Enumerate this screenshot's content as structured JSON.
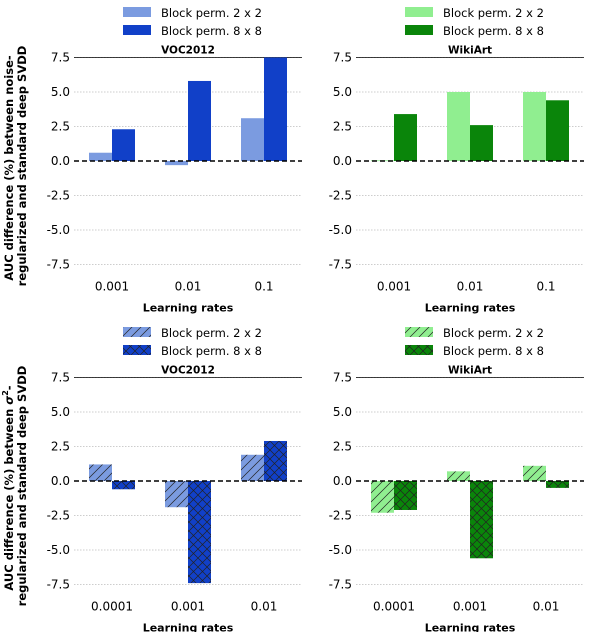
{
  "ylabel_rows": [
    {
      "line1": "AUC difference (%) between noise-",
      "line2": "regularized and standard deep SVDD"
    },
    {
      "line1_prefix": "AUC difference (%) between ",
      "line1_sigma": "σ",
      "line1_sup": "2",
      "line1_suffix": "-",
      "line2": "regularized and standard deep SVDD"
    }
  ],
  "chart_data": [
    {
      "type": "bar",
      "title": "VOC2012",
      "xlabel": "Learning rates",
      "categories": [
        "0.001",
        "0.01",
        "0.1"
      ],
      "ylim": [
        -8,
        7.5
      ],
      "yticks": [
        "7.5",
        "5.0",
        "2.5",
        "0.0",
        "-2.5",
        "-5.0",
        "-7.5"
      ],
      "hatched": false,
      "legend": "top",
      "series": [
        {
          "name": "Block perm. 2 x 2",
          "color": "#7b9be0",
          "values": [
            0.6,
            -0.3,
            3.1
          ]
        },
        {
          "name": "Block perm. 8 x 8",
          "color": "#1140c8",
          "values": [
            2.3,
            5.8,
            7.5
          ]
        }
      ]
    },
    {
      "type": "bar",
      "title": "WikiArt",
      "xlabel": "Learning rates",
      "categories": [
        "0.001",
        "0.01",
        "0.1"
      ],
      "ylim": [
        -8,
        7.5
      ],
      "yticks": [
        "7.5",
        "5.0",
        "2.5",
        "0.0",
        "-2.5",
        "-5.0",
        "-7.5"
      ],
      "hatched": false,
      "legend": "top",
      "series": [
        {
          "name": "Block perm. 2 x 2",
          "color": "#90ee90",
          "values": [
            0.05,
            5.0,
            5.0
          ]
        },
        {
          "name": "Block perm. 8 x 8",
          "color": "#0a850a",
          "values": [
            3.4,
            2.6,
            4.4
          ]
        }
      ]
    },
    {
      "type": "bar",
      "title": "VOC2012",
      "xlabel": "Learning rates",
      "categories": [
        "0.0001",
        "0.001",
        "0.01"
      ],
      "ylim": [
        -8,
        7.5
      ],
      "yticks": [
        "7.5",
        "5.0",
        "2.5",
        "0.0",
        "-2.5",
        "-5.0",
        "-7.5"
      ],
      "hatched": true,
      "legend": "top",
      "series": [
        {
          "name": "Block perm. 2 x 2",
          "color": "#7b9be0",
          "values": [
            1.2,
            -1.9,
            1.9
          ]
        },
        {
          "name": "Block perm. 8 x 8",
          "color": "#1140c8",
          "values": [
            -0.6,
            -7.4,
            2.9
          ]
        }
      ]
    },
    {
      "type": "bar",
      "title": "WikiArt",
      "xlabel": "Learning rates",
      "categories": [
        "0.0001",
        "0.001",
        "0.01"
      ],
      "ylim": [
        -8,
        7.5
      ],
      "yticks": [
        "7.5",
        "5.0",
        "2.5",
        "0.0",
        "-2.5",
        "-5.0",
        "-7.5"
      ],
      "hatched": true,
      "legend": "top",
      "series": [
        {
          "name": "Block perm. 2 x 2",
          "color": "#90ee90",
          "values": [
            -2.3,
            0.7,
            1.1
          ]
        },
        {
          "name": "Block perm. 8 x 8",
          "color": "#0a850a",
          "values": [
            -2.1,
            -5.6,
            -0.5
          ]
        }
      ]
    }
  ]
}
